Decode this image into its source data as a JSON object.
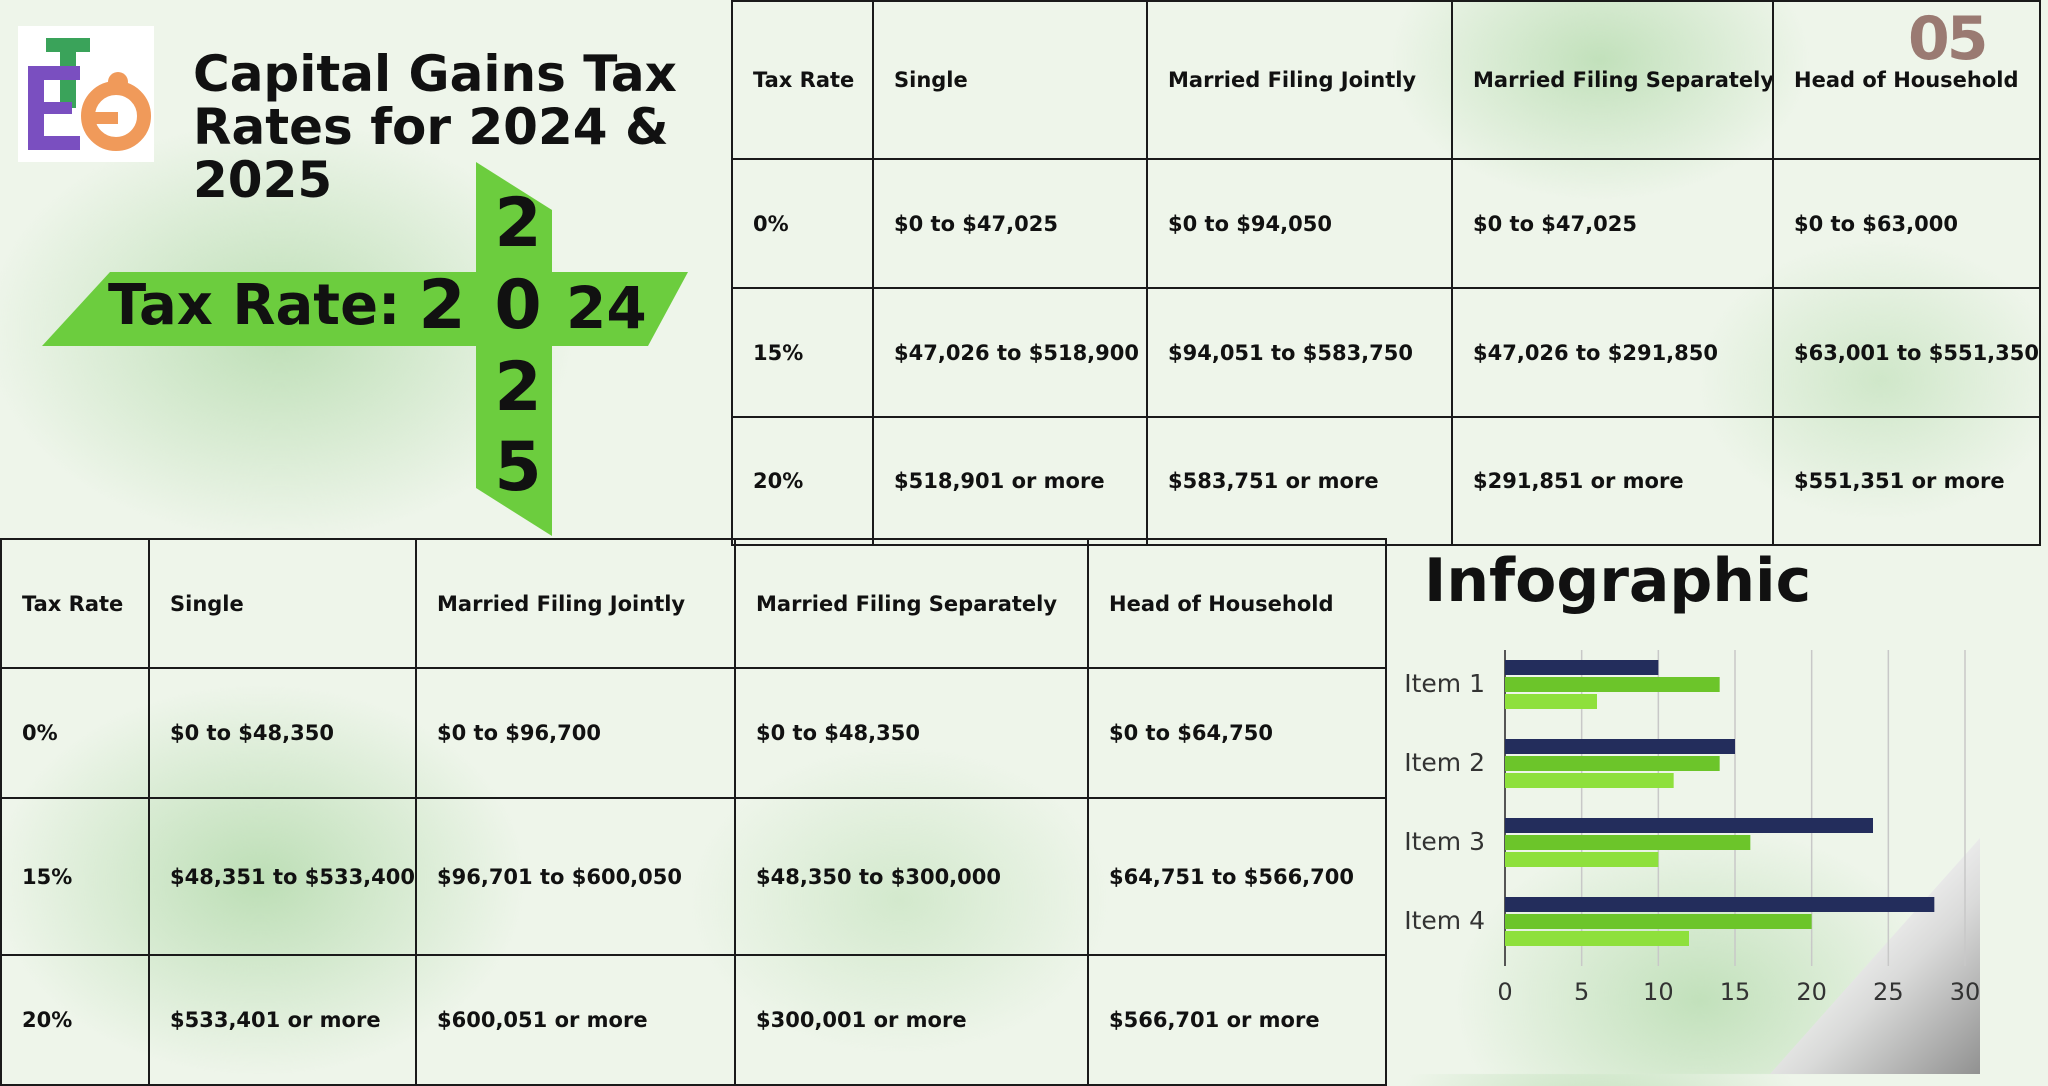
{
  "header": {
    "title_line1": "Capital Gains Tax",
    "title_line2": "Rates for 2024 & 2025",
    "page_number": "05"
  },
  "banner": {
    "label": "Tax Rate:",
    "year_2024_prefix": "2",
    "year_2024_suffix": "24",
    "year_2025_digits": [
      "2",
      "0",
      "2",
      "5"
    ]
  },
  "table_2024": {
    "headers": [
      "Tax Rate",
      "Single",
      "Married Filing Jointly",
      "Married Filing Separately",
      "Head of Household"
    ],
    "rows": [
      [
        "0%",
        "$0 to $47,025",
        "$0 to $94,050",
        "$0 to $47,025",
        "$0 to $63,000"
      ],
      [
        "15%",
        "$47,026 to $518,900",
        "$94,051 to $583,750",
        "$47,026 to $291,850",
        "$63,001 to $551,350"
      ],
      [
        "20%",
        "$518,901 or more",
        "$583,751 or more",
        "$291,851 or more",
        "$551,351 or more"
      ]
    ]
  },
  "table_2025": {
    "headers": [
      "Tax Rate",
      "Single",
      "Married Filing Jointly",
      "Married Filing Separately",
      "Head of Household"
    ],
    "rows": [
      [
        "0%",
        "$0 to $48,350",
        "$0 to $96,700",
        "$0 to $48,350",
        "$0 to $64,750"
      ],
      [
        "15%",
        "$48,351 to $533,400",
        "$96,701 to $600,050",
        "$48,350 to $300,000",
        "$64,751 to $566,700"
      ],
      [
        "20%",
        "$533,401 or more",
        "$600,051 or more",
        "$300,001 or more",
        "$566,701 or more"
      ]
    ]
  },
  "infographic": {
    "title": "Infographic"
  },
  "chart_data": {
    "type": "bar",
    "orientation": "horizontal",
    "categories": [
      "Item 1",
      "Item 2",
      "Item 3",
      "Item 4"
    ],
    "series": [
      {
        "values": [
          10,
          15,
          24,
          28
        ],
        "color": "#232d5c"
      },
      {
        "values": [
          14,
          14,
          16,
          20
        ],
        "color": "#6cc52a"
      },
      {
        "values": [
          6,
          11,
          10,
          12
        ],
        "color": "#8ee03c"
      }
    ],
    "xlim": [
      0,
      30
    ],
    "xticks": [
      0,
      5,
      10,
      15,
      20,
      25,
      30
    ],
    "grid": true
  },
  "colors": {
    "banner_green": "#6ccd3e",
    "text": "#111111"
  }
}
